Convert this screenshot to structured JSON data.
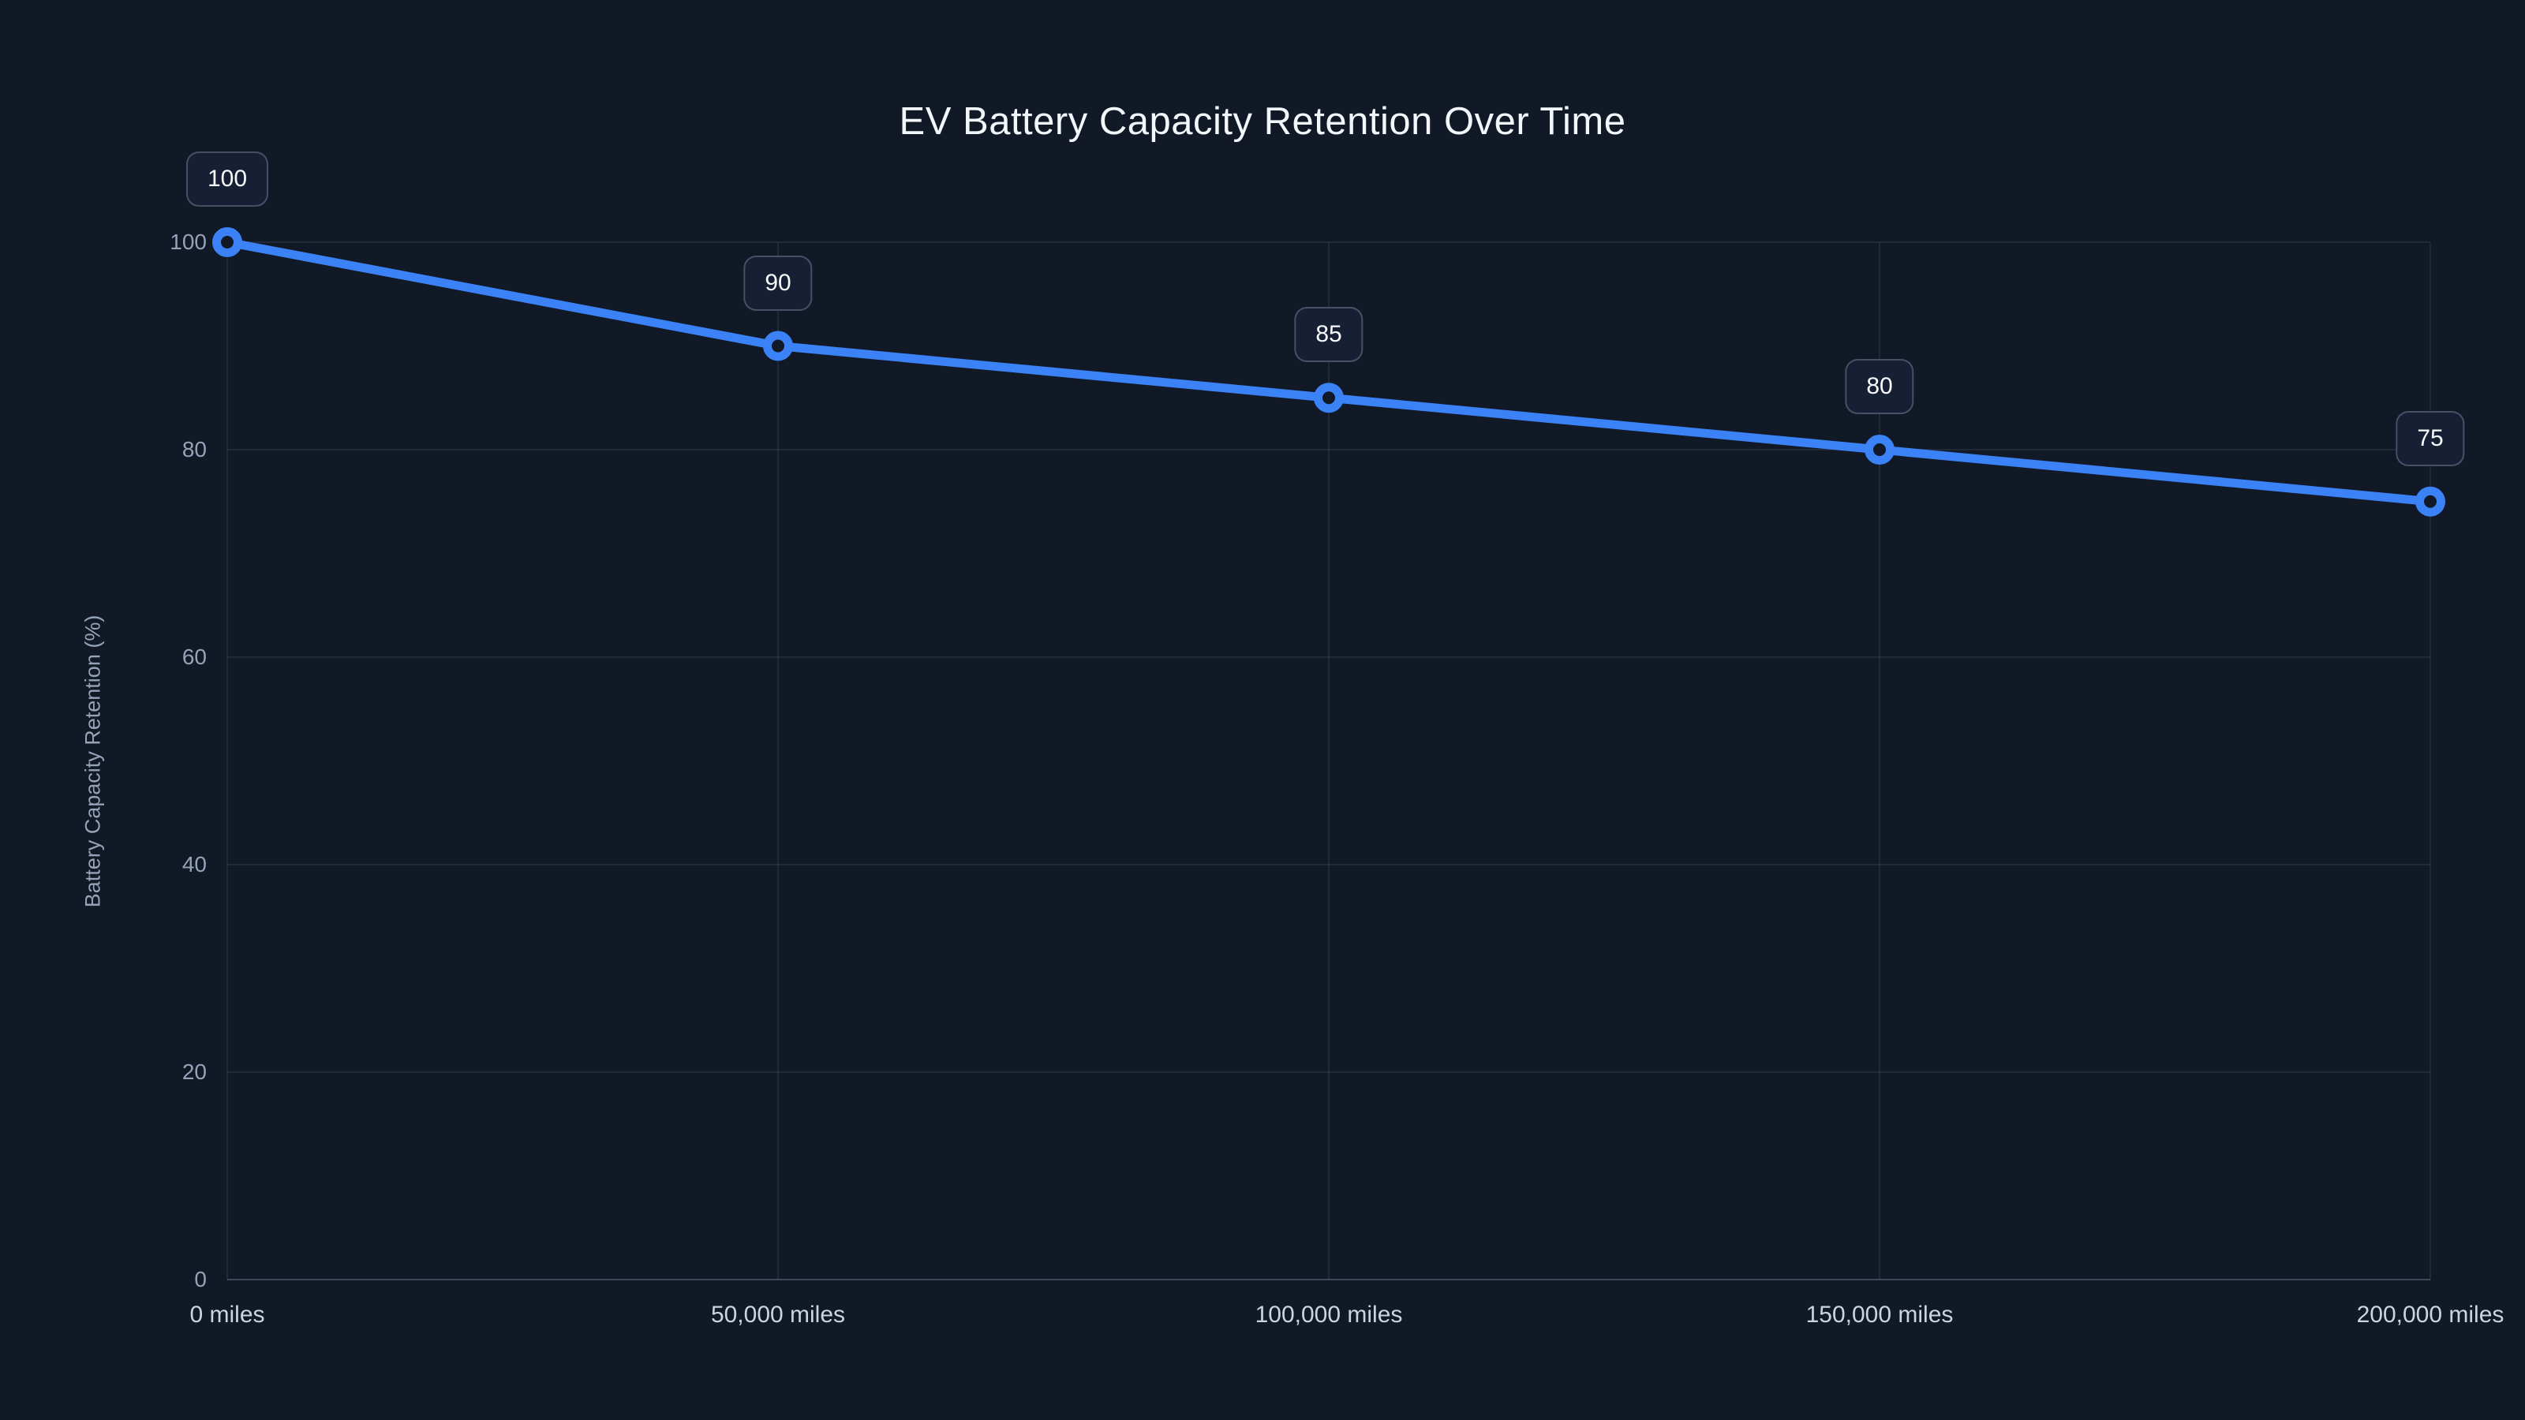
{
  "title": "EV Battery Capacity Retention Over Time",
  "chart_data": {
    "type": "line",
    "title": "EV Battery Capacity Retention Over Time",
    "xlabel": "",
    "ylabel": "Battery Capacity Retention (%)",
    "x": [
      0,
      50000,
      100000,
      150000,
      200000
    ],
    "x_tick_labels": [
      "0 miles",
      "50,000 miles",
      "100,000 miles",
      "150,000 miles",
      "200,000 miles"
    ],
    "series": [
      {
        "name": "Battery Capacity Retention",
        "values": [
          100,
          90,
          85,
          80,
          75
        ]
      }
    ],
    "data_labels": [
      "100",
      "90",
      "85",
      "80",
      "75"
    ],
    "y_ticks": [
      0,
      20,
      40,
      60,
      80,
      100
    ],
    "y_tick_labels": [
      "0",
      "20",
      "40",
      "60",
      "80",
      "100"
    ],
    "ylim": [
      0,
      100
    ],
    "grid": true,
    "legend": "none",
    "colors": {
      "background": "#111826",
      "line": "#3b82f6",
      "marker_ring": "#3b82f6",
      "marker_fill": "#111826",
      "gridline": "rgba(148,163,184,0.13)",
      "axis_line": "rgba(148,163,184,0.35)",
      "title_text": "#f3f6fa",
      "axis_tick_text": "#94a3b8",
      "x_tick_text": "#cbd5e1",
      "badge_background": "#161f33",
      "badge_border": "rgba(148,163,184,0.38)",
      "badge_text": "#f8fafc"
    }
  }
}
